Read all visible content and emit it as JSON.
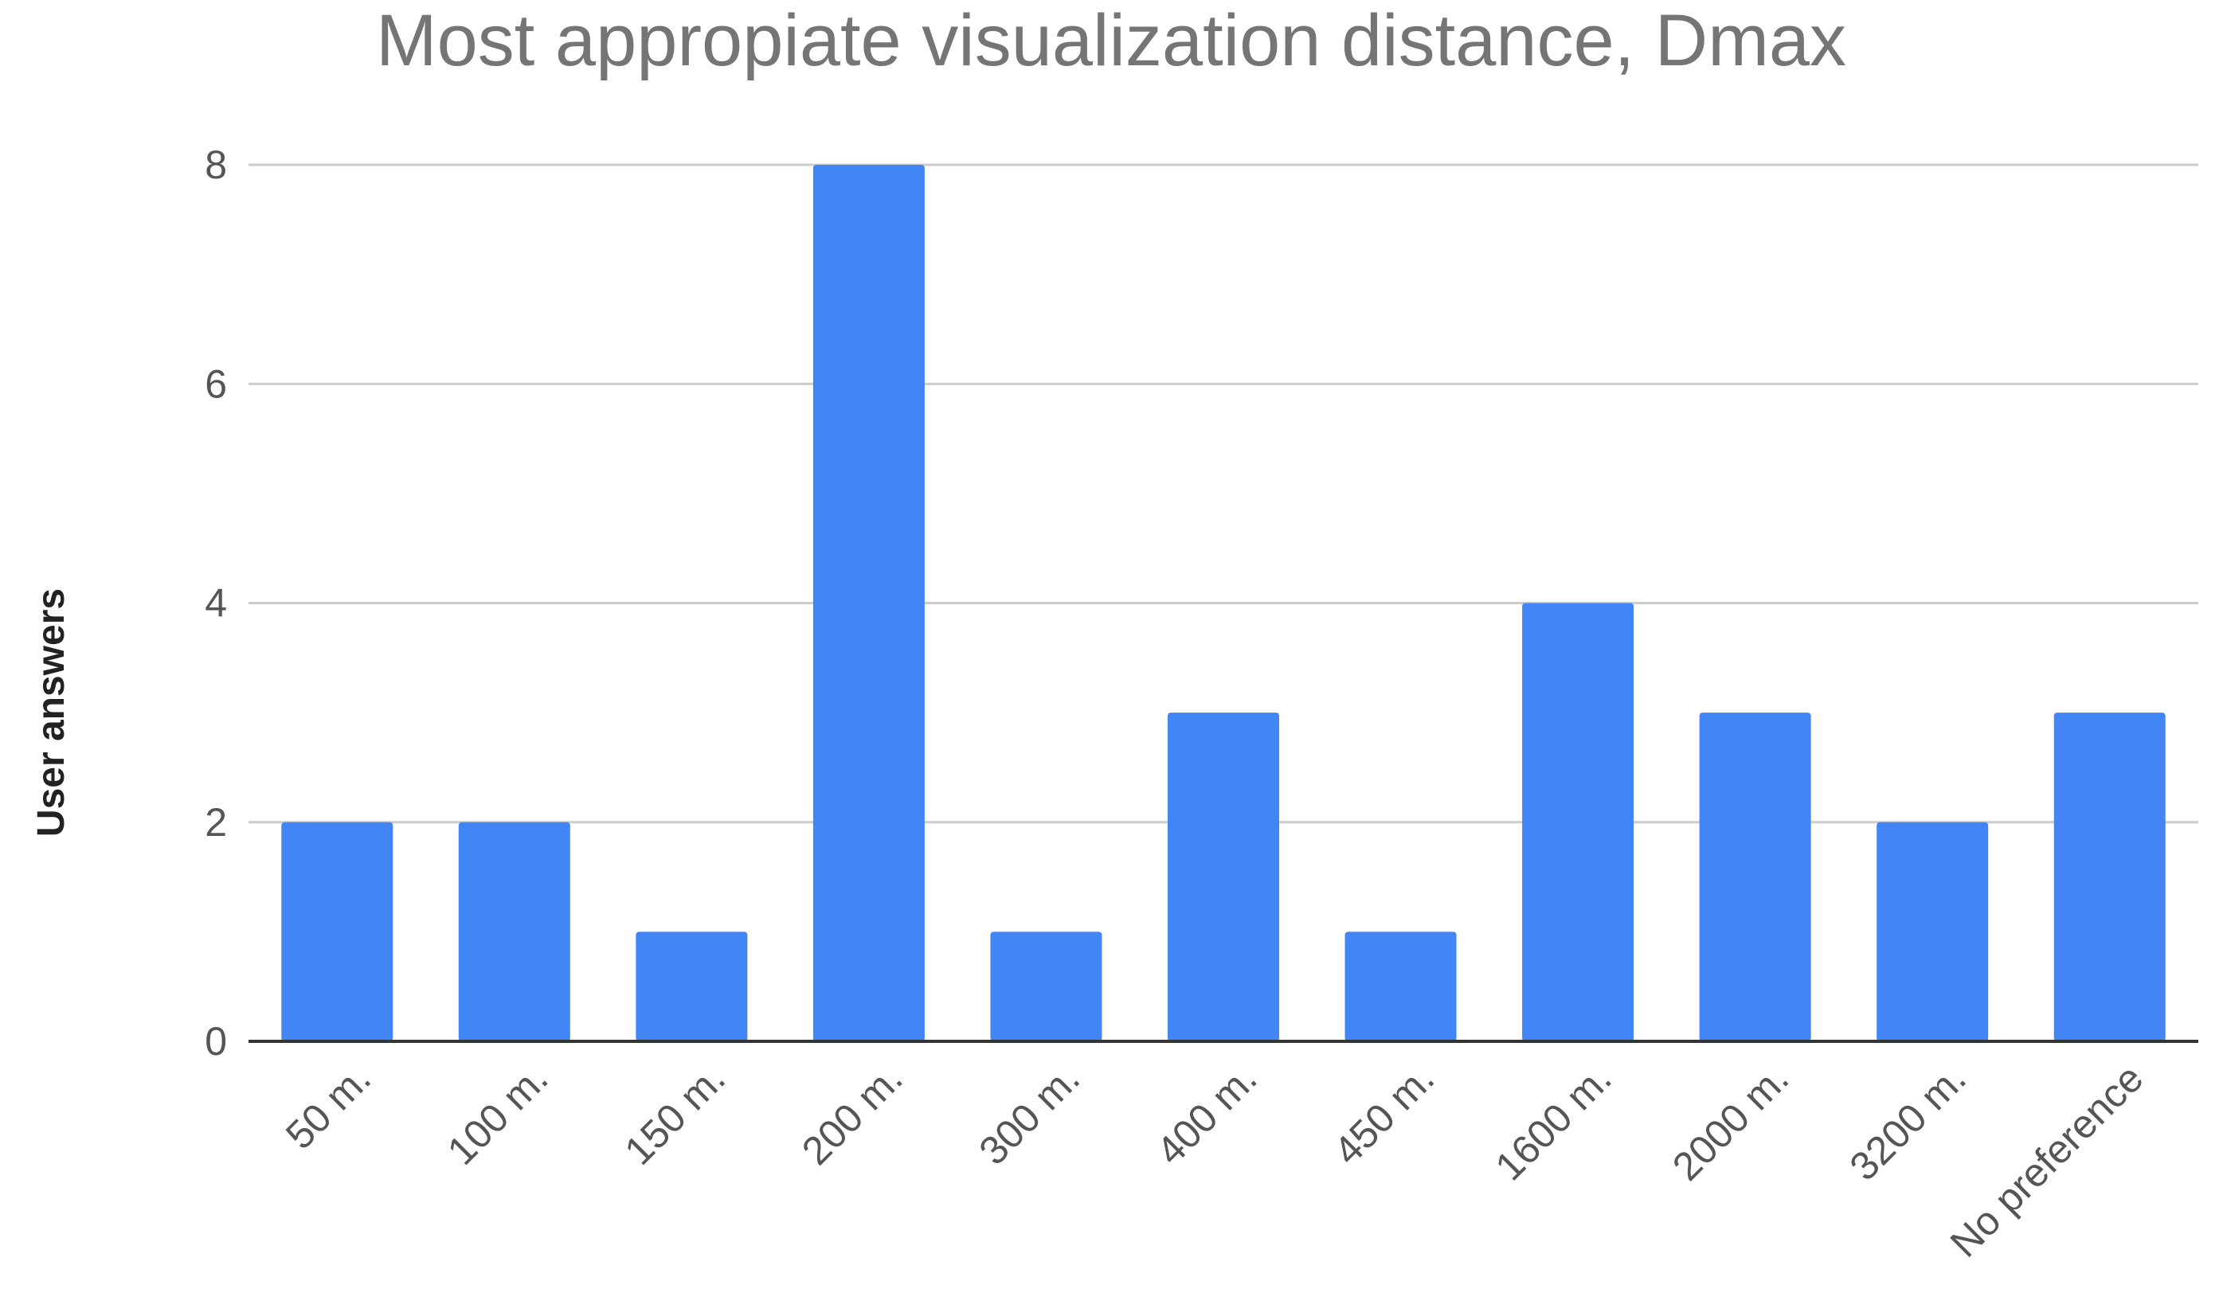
{
  "chart_data": {
    "type": "bar",
    "title": "Most appropiate visualization distance, Dmax",
    "xlabel": "",
    "ylabel": "User answers",
    "categories": [
      "50 m.",
      "100 m.",
      "150 m.",
      "200 m.",
      "300 m.",
      "400 m.",
      "450 m.",
      "1600 m.",
      "2000 m.",
      "3200 m.",
      "No preference"
    ],
    "values": [
      2,
      2,
      1,
      8,
      1,
      3,
      1,
      4,
      3,
      2,
      3
    ],
    "ylim": [
      0,
      8
    ],
    "yticks": [
      0,
      2,
      4,
      6,
      8
    ],
    "grid": true,
    "legend": "none",
    "bar_color": "#4285f4"
  }
}
